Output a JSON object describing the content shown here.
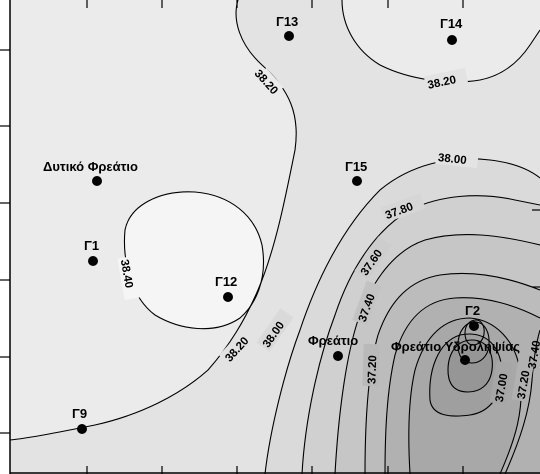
{
  "wells": [
    {
      "id": "g13",
      "label": "Γ13"
    },
    {
      "id": "g14",
      "label": "Γ14"
    },
    {
      "id": "dytiko",
      "label": "Δυτικό Φρεάτιο"
    },
    {
      "id": "g15",
      "label": "Γ15"
    },
    {
      "id": "g1",
      "label": "Γ1"
    },
    {
      "id": "g12",
      "label": "Γ12"
    },
    {
      "id": "g2",
      "label": "Γ2"
    },
    {
      "id": "freatio",
      "label": "Φρεάτιο"
    },
    {
      "id": "ydrolipsias",
      "label": "Φρεάτιο Υδροληψίας"
    },
    {
      "id": "g9",
      "label": "Γ9"
    }
  ],
  "contour_labels": [
    {
      "id": "c3820a",
      "text": "38.20"
    },
    {
      "id": "c3820b",
      "text": "38.20"
    },
    {
      "id": "c3800a",
      "text": "38.00"
    },
    {
      "id": "c3780",
      "text": "37.80"
    },
    {
      "id": "c3760",
      "text": "37.60"
    },
    {
      "id": "c3840",
      "text": "38.40"
    },
    {
      "id": "c3740",
      "text": "37.40"
    },
    {
      "id": "c3820c",
      "text": "38.20"
    },
    {
      "id": "c3800b",
      "text": "38.00"
    },
    {
      "id": "c3720a",
      "text": "37.20"
    },
    {
      "id": "c3700",
      "text": "37.00"
    },
    {
      "id": "c3720b",
      "text": "37.20"
    },
    {
      "id": "c3740b",
      "text": "37.40"
    }
  ],
  "colors": {
    "background": "#ffffff",
    "level_384": "#f4f4f4",
    "level_382": "#ebebeb",
    "level_380": "#e0e0e0",
    "level_378": "#d6d6d6",
    "level_376": "#cdcdcd",
    "level_374": "#c3c3c3",
    "level_372": "#b9b9b9",
    "level_370": "#afafaf",
    "level_368": "#a6a6a6",
    "contour": "#000000",
    "frame": "#000000"
  }
}
